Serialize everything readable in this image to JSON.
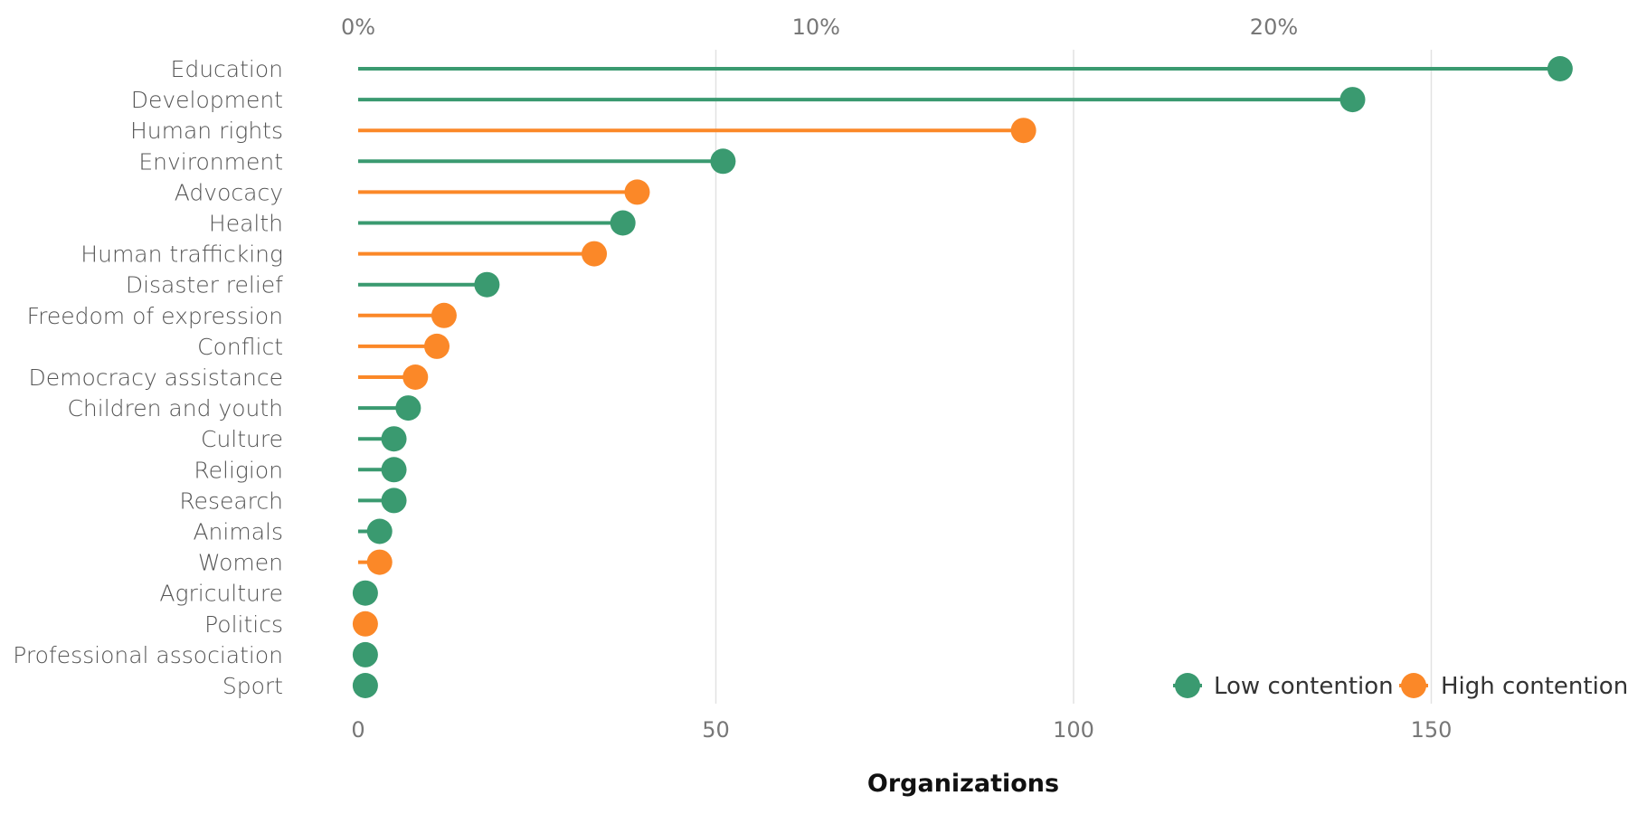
{
  "chart_data": {
    "type": "lollipop",
    "xlabel": "Organizations",
    "xlim": [
      0,
      170
    ],
    "x_ticks": [
      0,
      50,
      100,
      150
    ],
    "top_axis_ticks": [
      "0%",
      "10%",
      "20%"
    ],
    "top_axis_values": [
      0,
      64,
      128
    ],
    "grid": true,
    "legend_position": "bottom-right",
    "legend": [
      {
        "name": "Low contention",
        "color": "#3a9a70"
      },
      {
        "name": "High contention",
        "color": "#fb8828"
      }
    ],
    "categories": [
      "Education",
      "Development",
      "Human rights",
      "Environment",
      "Advocacy",
      "Health",
      "Human trafficking",
      "Disaster relief",
      "Freedom of expression",
      "Conflict",
      "Democracy assistance",
      "Children and youth",
      "Culture",
      "Religion",
      "Research",
      "Animals",
      "Women",
      "Agriculture",
      "Politics",
      "Professional association",
      "Sport"
    ],
    "values": [
      168,
      139,
      93,
      51,
      39,
      37,
      33,
      18,
      12,
      11,
      8,
      7,
      5,
      5,
      5,
      3,
      3,
      1,
      1,
      1,
      1
    ],
    "contention": [
      "Low contention",
      "Low contention",
      "High contention",
      "Low contention",
      "High contention",
      "Low contention",
      "High contention",
      "Low contention",
      "High contention",
      "High contention",
      "High contention",
      "Low contention",
      "Low contention",
      "Low contention",
      "Low contention",
      "Low contention",
      "High contention",
      "Low contention",
      "High contention",
      "Low contention",
      "Low contention"
    ]
  }
}
